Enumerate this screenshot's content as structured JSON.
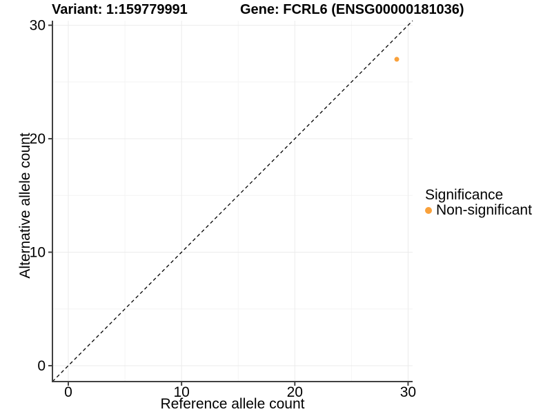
{
  "figure": {
    "title_left": "Variant: 1:159779991",
    "title_right": "Gene: FCRL6 (ENSG00000181036)"
  },
  "chart_data": {
    "type": "scatter",
    "title": "Variant: 1:159779991   Gene: FCRL6 (ENSG00000181036)",
    "xlabel": "Reference allele count",
    "ylabel": "Alternative allele count",
    "xlim": [
      -1.4,
      30.4
    ],
    "ylim": [
      -1.4,
      30.4
    ],
    "xticks": [
      0,
      10,
      20,
      30
    ],
    "yticks": [
      0,
      10,
      20,
      30
    ],
    "x_minor_ticks": [
      5,
      15,
      25
    ],
    "y_minor_ticks": [
      5,
      15,
      25
    ],
    "grid": "on (major + minor, light gray)",
    "series": [
      {
        "name": "Non-significant",
        "color": "#F9A13B",
        "points": [
          [
            29,
            27
          ]
        ],
        "point_radius": 3.5
      }
    ],
    "reference_line": {
      "type": "identity (y = x)",
      "style": "dashed",
      "color": "#000000"
    },
    "legend": {
      "title": "Significance",
      "position": "right",
      "items": [
        {
          "label": "Non-significant",
          "color": "#F9A13B"
        }
      ]
    }
  },
  "style": {
    "axis_line_color": "#404040",
    "tick_color": "#404040",
    "grid_major_color": "#EBEBEB",
    "grid_minor_color": "#F4F4F4",
    "background": "#FFFFFF"
  }
}
